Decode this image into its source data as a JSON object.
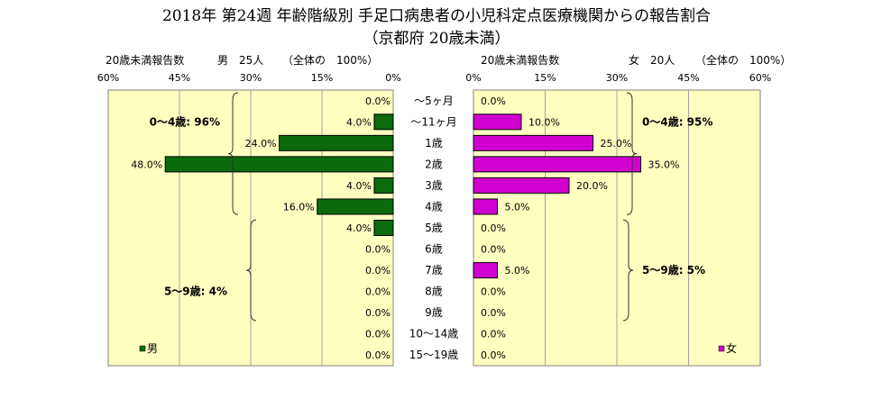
{
  "chart_data": {
    "type": "bar",
    "title": "2018年 第24週 年齢階級別 手足口病患者の小児科定点医療機関からの報告割合",
    "subtitle": "（京都府 20歳未満）",
    "categories": [
      "～5ヶ月",
      "～11ヶ月",
      "1歳",
      "2歳",
      "3歳",
      "4歳",
      "5歳",
      "6歳",
      "7歳",
      "8歳",
      "9歳",
      "10～14歳",
      "15～19歳"
    ],
    "xlim": [
      0,
      60
    ],
    "ticks": [
      "0%",
      "15%",
      "30%",
      "45%",
      "60%"
    ],
    "grid": true,
    "series": [
      {
        "name": "男",
        "side": "left",
        "header_label": "20歳未満報告数",
        "header_count": "男　25人",
        "header_note": "（全体の　100%）",
        "values": [
          0.0,
          4.0,
          24.0,
          48.0,
          4.0,
          16.0,
          4.0,
          0.0,
          0.0,
          0.0,
          0.0,
          0.0,
          0.0
        ],
        "color": "#0b6b0b",
        "legend": "男",
        "groups": [
          {
            "label": "0～4歳: 96%",
            "from": 0,
            "to": 5
          },
          {
            "label": "5～9歳: 4%",
            "from": 6,
            "to": 10
          }
        ]
      },
      {
        "name": "女",
        "side": "right",
        "header_label": "20歳未満報告数",
        "header_count": "女　20人",
        "header_note": "（全体の　100%）",
        "values": [
          0.0,
          10.0,
          25.0,
          35.0,
          20.0,
          5.0,
          0.0,
          0.0,
          5.0,
          0.0,
          0.0,
          0.0,
          0.0
        ],
        "color": "#d100d1",
        "legend": "女",
        "groups": [
          {
            "label": "0～4歳: 95%",
            "from": 0,
            "to": 5
          },
          {
            "label": "5～9歳: 5%",
            "from": 6,
            "to": 10
          }
        ]
      }
    ],
    "colors": {
      "plot_background": "#ffffc0",
      "frame": "#808080"
    }
  }
}
